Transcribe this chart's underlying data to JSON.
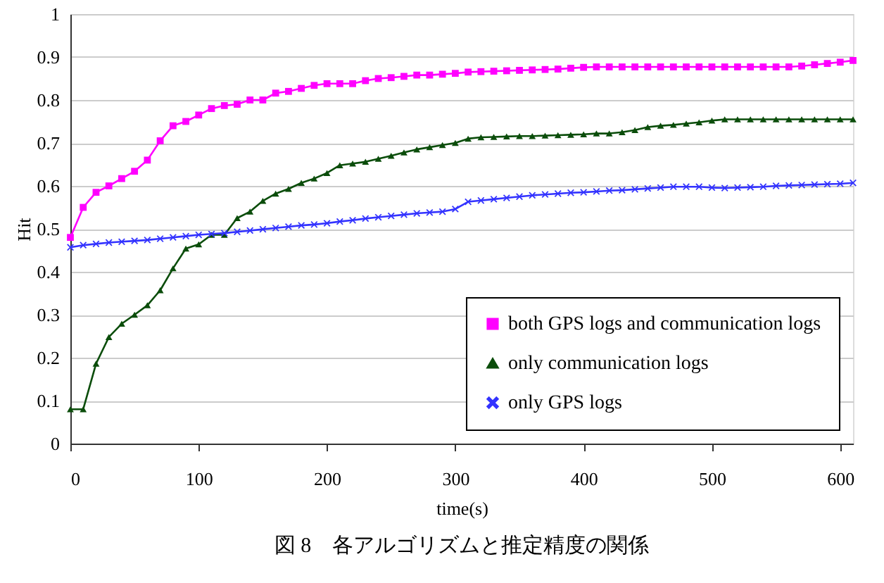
{
  "chart_data": {
    "type": "line",
    "title": "図 8　各アルゴリズムと推定精度の関係",
    "xlabel": "time(s)",
    "ylabel": "Hit",
    "x": [
      0,
      10,
      20,
      30,
      40,
      50,
      60,
      70,
      80,
      90,
      100,
      110,
      120,
      130,
      140,
      150,
      160,
      170,
      180,
      190,
      200,
      210,
      220,
      230,
      240,
      250,
      260,
      270,
      280,
      290,
      300,
      310,
      320,
      330,
      340,
      350,
      360,
      370,
      380,
      390,
      400,
      410,
      420,
      430,
      440,
      450,
      460,
      470,
      480,
      490,
      500,
      510,
      520,
      530,
      540,
      550,
      560,
      570,
      580,
      590,
      600,
      610
    ],
    "series": [
      {
        "name": "both GPS logs and communication logs",
        "color": "#ff00ff",
        "marker": "square",
        "values": [
          0.48,
          0.55,
          0.585,
          0.6,
          0.617,
          0.634,
          0.66,
          0.705,
          0.74,
          0.75,
          0.765,
          0.78,
          0.787,
          0.79,
          0.8,
          0.8,
          0.816,
          0.82,
          0.827,
          0.834,
          0.838,
          0.838,
          0.838,
          0.845,
          0.85,
          0.852,
          0.855,
          0.858,
          0.858,
          0.86,
          0.862,
          0.865,
          0.866,
          0.867,
          0.868,
          0.869,
          0.87,
          0.871,
          0.872,
          0.874,
          0.876,
          0.877,
          0.877,
          0.877,
          0.877,
          0.877,
          0.877,
          0.877,
          0.877,
          0.877,
          0.877,
          0.877,
          0.877,
          0.877,
          0.877,
          0.877,
          0.877,
          0.879,
          0.882,
          0.885,
          0.888,
          0.892
        ]
      },
      {
        "name": "only communication logs",
        "color": "#0b4d0b",
        "marker": "triangle",
        "values": [
          0.08,
          0.08,
          0.186,
          0.248,
          0.279,
          0.3,
          0.322,
          0.357,
          0.408,
          0.454,
          0.464,
          0.486,
          0.486,
          0.525,
          0.54,
          0.565,
          0.582,
          0.593,
          0.607,
          0.617,
          0.63,
          0.648,
          0.652,
          0.656,
          0.663,
          0.67,
          0.678,
          0.685,
          0.69,
          0.695,
          0.7,
          0.71,
          0.713,
          0.714,
          0.715,
          0.716,
          0.716,
          0.717,
          0.718,
          0.719,
          0.72,
          0.722,
          0.722,
          0.725,
          0.73,
          0.737,
          0.74,
          0.742,
          0.745,
          0.748,
          0.752,
          0.755,
          0.755,
          0.755,
          0.755,
          0.755,
          0.755,
          0.755,
          0.755,
          0.755,
          0.755,
          0.755
        ]
      },
      {
        "name": "only GPS logs",
        "color": "#3333ff",
        "marker": "cross",
        "values": [
          0.457,
          0.462,
          0.465,
          0.468,
          0.47,
          0.472,
          0.474,
          0.477,
          0.48,
          0.483,
          0.486,
          0.488,
          0.49,
          0.493,
          0.496,
          0.499,
          0.502,
          0.505,
          0.508,
          0.51,
          0.513,
          0.517,
          0.52,
          0.524,
          0.527,
          0.53,
          0.533,
          0.536,
          0.538,
          0.54,
          0.546,
          0.563,
          0.566,
          0.569,
          0.572,
          0.575,
          0.578,
          0.58,
          0.582,
          0.584,
          0.585,
          0.587,
          0.589,
          0.59,
          0.592,
          0.594,
          0.596,
          0.598,
          0.598,
          0.598,
          0.596,
          0.595,
          0.596,
          0.597,
          0.598,
          0.6,
          0.601,
          0.602,
          0.603,
          0.604,
          0.605,
          0.607
        ]
      }
    ],
    "xlim": [
      0,
      610
    ],
    "xticks": [
      0,
      100,
      200,
      300,
      400,
      500,
      600
    ],
    "ylim": [
      0,
      1
    ],
    "yticks": [
      0,
      0.1,
      0.2,
      0.3,
      0.4,
      0.5,
      0.6,
      0.7,
      0.8,
      0.9,
      1
    ],
    "grid": "y",
    "legend": "bottom right"
  }
}
